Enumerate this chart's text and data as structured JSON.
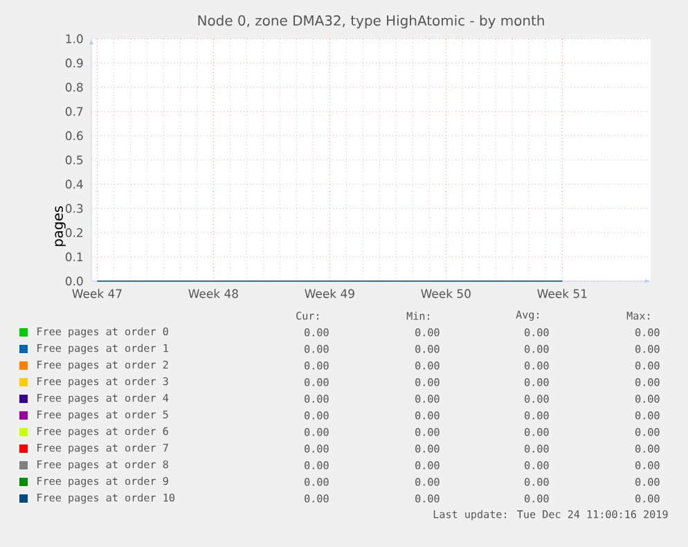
{
  "chart_data": {
    "type": "line",
    "title": "Node 0, zone DMA32, type HighAtomic - by month",
    "ylabel": "pages",
    "categories": [
      "Week 47",
      "Week 48",
      "Week 49",
      "Week 50",
      "Week 51"
    ],
    "ylim": [
      0,
      1
    ],
    "yticks": [
      {
        "value": 0,
        "label": "0.0"
      },
      {
        "value": 0.1,
        "label": "0.1"
      },
      {
        "value": 0.2,
        "label": "0.2"
      },
      {
        "value": 0.3,
        "label": "0.3"
      },
      {
        "value": 0.4,
        "label": "0.4"
      },
      {
        "value": 0.5,
        "label": "0.5"
      },
      {
        "value": 0.6,
        "label": "0.6"
      },
      {
        "value": 0.7,
        "label": "0.7"
      },
      {
        "value": 0.8,
        "label": "0.8"
      },
      {
        "value": 0.9,
        "label": "0.9"
      },
      {
        "value": 1.0,
        "label": "1.0"
      }
    ],
    "grid": true,
    "legend": "bottom",
    "annotations": [
      "Cur:",
      "Min:",
      "Avg:",
      "Max:",
      "0.00",
      "0.00",
      "0.00",
      "0.00",
      "0.00",
      "0.00",
      "0.00",
      "0.00",
      "0.00",
      "0.00",
      "0.00",
      "0.00",
      "0.00",
      "0.00",
      "0.00",
      "0.00",
      "0.00",
      "0.00",
      "0.00",
      "0.00",
      "0.00",
      "0.00",
      "0.00",
      "0.00",
      "0.00",
      "0.00",
      "0.00",
      "0.00",
      "0.00",
      "0.00",
      "0.00",
      "0.00",
      "0.00",
      "0.00",
      "0.00",
      "0.00",
      "0.00",
      "0.00",
      "0.00",
      "0.00",
      "0.00",
      "0.00",
      "0.00",
      "0.00",
      "Last update: Tue Dec 24 11:00:16 2019"
    ],
    "series": [
      {
        "name": "Free pages at order 0",
        "color": "#00cc00",
        "values": [
          null,
          null,
          null,
          null,
          null
        ]
      },
      {
        "name": "Free pages at order 1",
        "color": "#0066b3",
        "values": [
          null,
          null,
          null,
          null,
          null
        ]
      },
      {
        "name": "Free pages at order 2",
        "color": "#ff8000",
        "values": [
          null,
          null,
          null,
          null,
          null
        ]
      },
      {
        "name": "Free pages at order 3",
        "color": "#ffcc00",
        "values": [
          null,
          null,
          null,
          null,
          null
        ]
      },
      {
        "name": "Free pages at order 4",
        "color": "#330099",
        "values": [
          null,
          null,
          null,
          null,
          null
        ]
      },
      {
        "name": "Free pages at order 5",
        "color": "#990099",
        "values": [
          null,
          null,
          null,
          null,
          null
        ]
      },
      {
        "name": "Free pages at order 6",
        "color": "#ccff00",
        "values": [
          null,
          null,
          null,
          null,
          null
        ]
      },
      {
        "name": "Free pages at order 7",
        "color": "#ff0000",
        "values": [
          null,
          null,
          null,
          null,
          null
        ]
      },
      {
        "name": "Free pages at order 8",
        "color": "#808080",
        "values": [
          null,
          null,
          null,
          null,
          null
        ]
      },
      {
        "name": "Free pages at order 9",
        "color": "#008f00",
        "values": [
          null,
          null,
          null,
          null,
          null
        ]
      },
      {
        "name": "Free pages at order 10",
        "color": "#00487d",
        "values": [
          0,
          0,
          0,
          0,
          0
        ]
      }
    ]
  }
}
